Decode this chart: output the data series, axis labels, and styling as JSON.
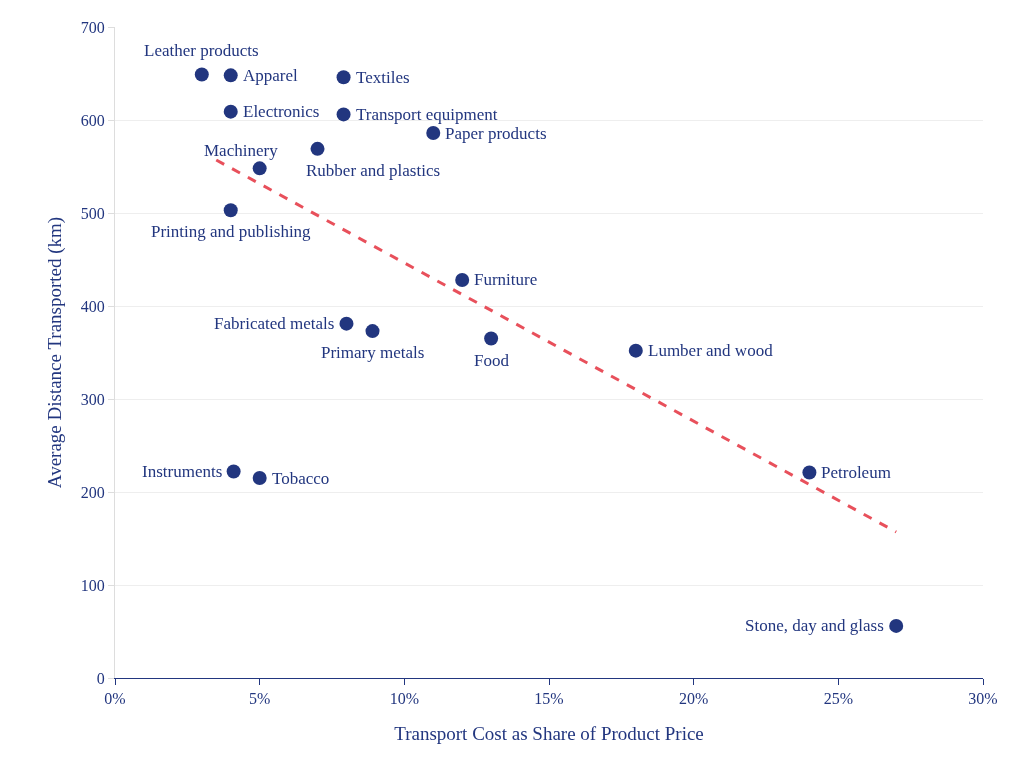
{
  "chart_data": {
    "type": "scatter",
    "xlabel": "Transport Cost as Share of Product Price",
    "ylabel": "Average Distance Transported (km)",
    "xlim": [
      0,
      30
    ],
    "xticks": [
      {
        "value": 0,
        "label": "0%"
      },
      {
        "value": 5,
        "label": "5%"
      },
      {
        "value": 10,
        "label": "10%"
      },
      {
        "value": 15,
        "label": "15%"
      },
      {
        "value": 20,
        "label": "20%"
      },
      {
        "value": 25,
        "label": "25%"
      },
      {
        "value": 30,
        "label": "30%"
      }
    ],
    "ylim": [
      0,
      700
    ],
    "yticks": [
      0,
      100,
      200,
      300,
      400,
      500,
      600,
      700
    ],
    "grid": "y",
    "legend": false,
    "series": [
      {
        "marker": "circle",
        "color": "#22367f",
        "x": [
          3.0,
          4.0,
          7.9,
          4.0,
          7.9,
          11.0,
          5.0,
          7.0,
          4.0,
          12.0,
          8.0,
          8.9,
          13.0,
          18.0,
          4.1,
          5.0,
          24.0,
          27.0
        ],
        "values": [
          649,
          648,
          646,
          609,
          606,
          586,
          548,
          569,
          503,
          428,
          381,
          373,
          365,
          352,
          222,
          215,
          221,
          56
        ]
      },
      {
        "type": "line",
        "color": "#e8505b",
        "line_style": "dashed",
        "x": [
          3.5,
          27.0
        ],
        "values": [
          557,
          157
        ]
      }
    ],
    "annotations": [
      {
        "text": "Leather products",
        "x": 3.0,
        "y": 649
      },
      {
        "text": "Apparel",
        "x": 4.0,
        "y": 648
      },
      {
        "text": "Textiles",
        "x": 7.9,
        "y": 646
      },
      {
        "text": "Electronics",
        "x": 4.0,
        "y": 609
      },
      {
        "text": "Transport equipment",
        "x": 7.9,
        "y": 606
      },
      {
        "text": "Paper products",
        "x": 11.0,
        "y": 586
      },
      {
        "text": "Machinery",
        "x": 5.0,
        "y": 548
      },
      {
        "text": "Rubber and plastics",
        "x": 7.0,
        "y": 569
      },
      {
        "text": "Printing and publishing",
        "x": 4.0,
        "y": 503
      },
      {
        "text": "Furniture",
        "x": 12.0,
        "y": 428
      },
      {
        "text": "Fabricated metals",
        "x": 8.0,
        "y": 381
      },
      {
        "text": "Primary metals",
        "x": 8.9,
        "y": 373
      },
      {
        "text": "Food",
        "x": 13.0,
        "y": 365
      },
      {
        "text": "Lumber and wood",
        "x": 18.0,
        "y": 352
      },
      {
        "text": "Instruments",
        "x": 4.1,
        "y": 222
      },
      {
        "text": "Tobacco",
        "x": 5.0,
        "y": 215
      },
      {
        "text": "Petroleum",
        "x": 24.0,
        "y": 221
      },
      {
        "text": "Stone, day and glass",
        "x": 27.0,
        "y": 56
      }
    ]
  }
}
